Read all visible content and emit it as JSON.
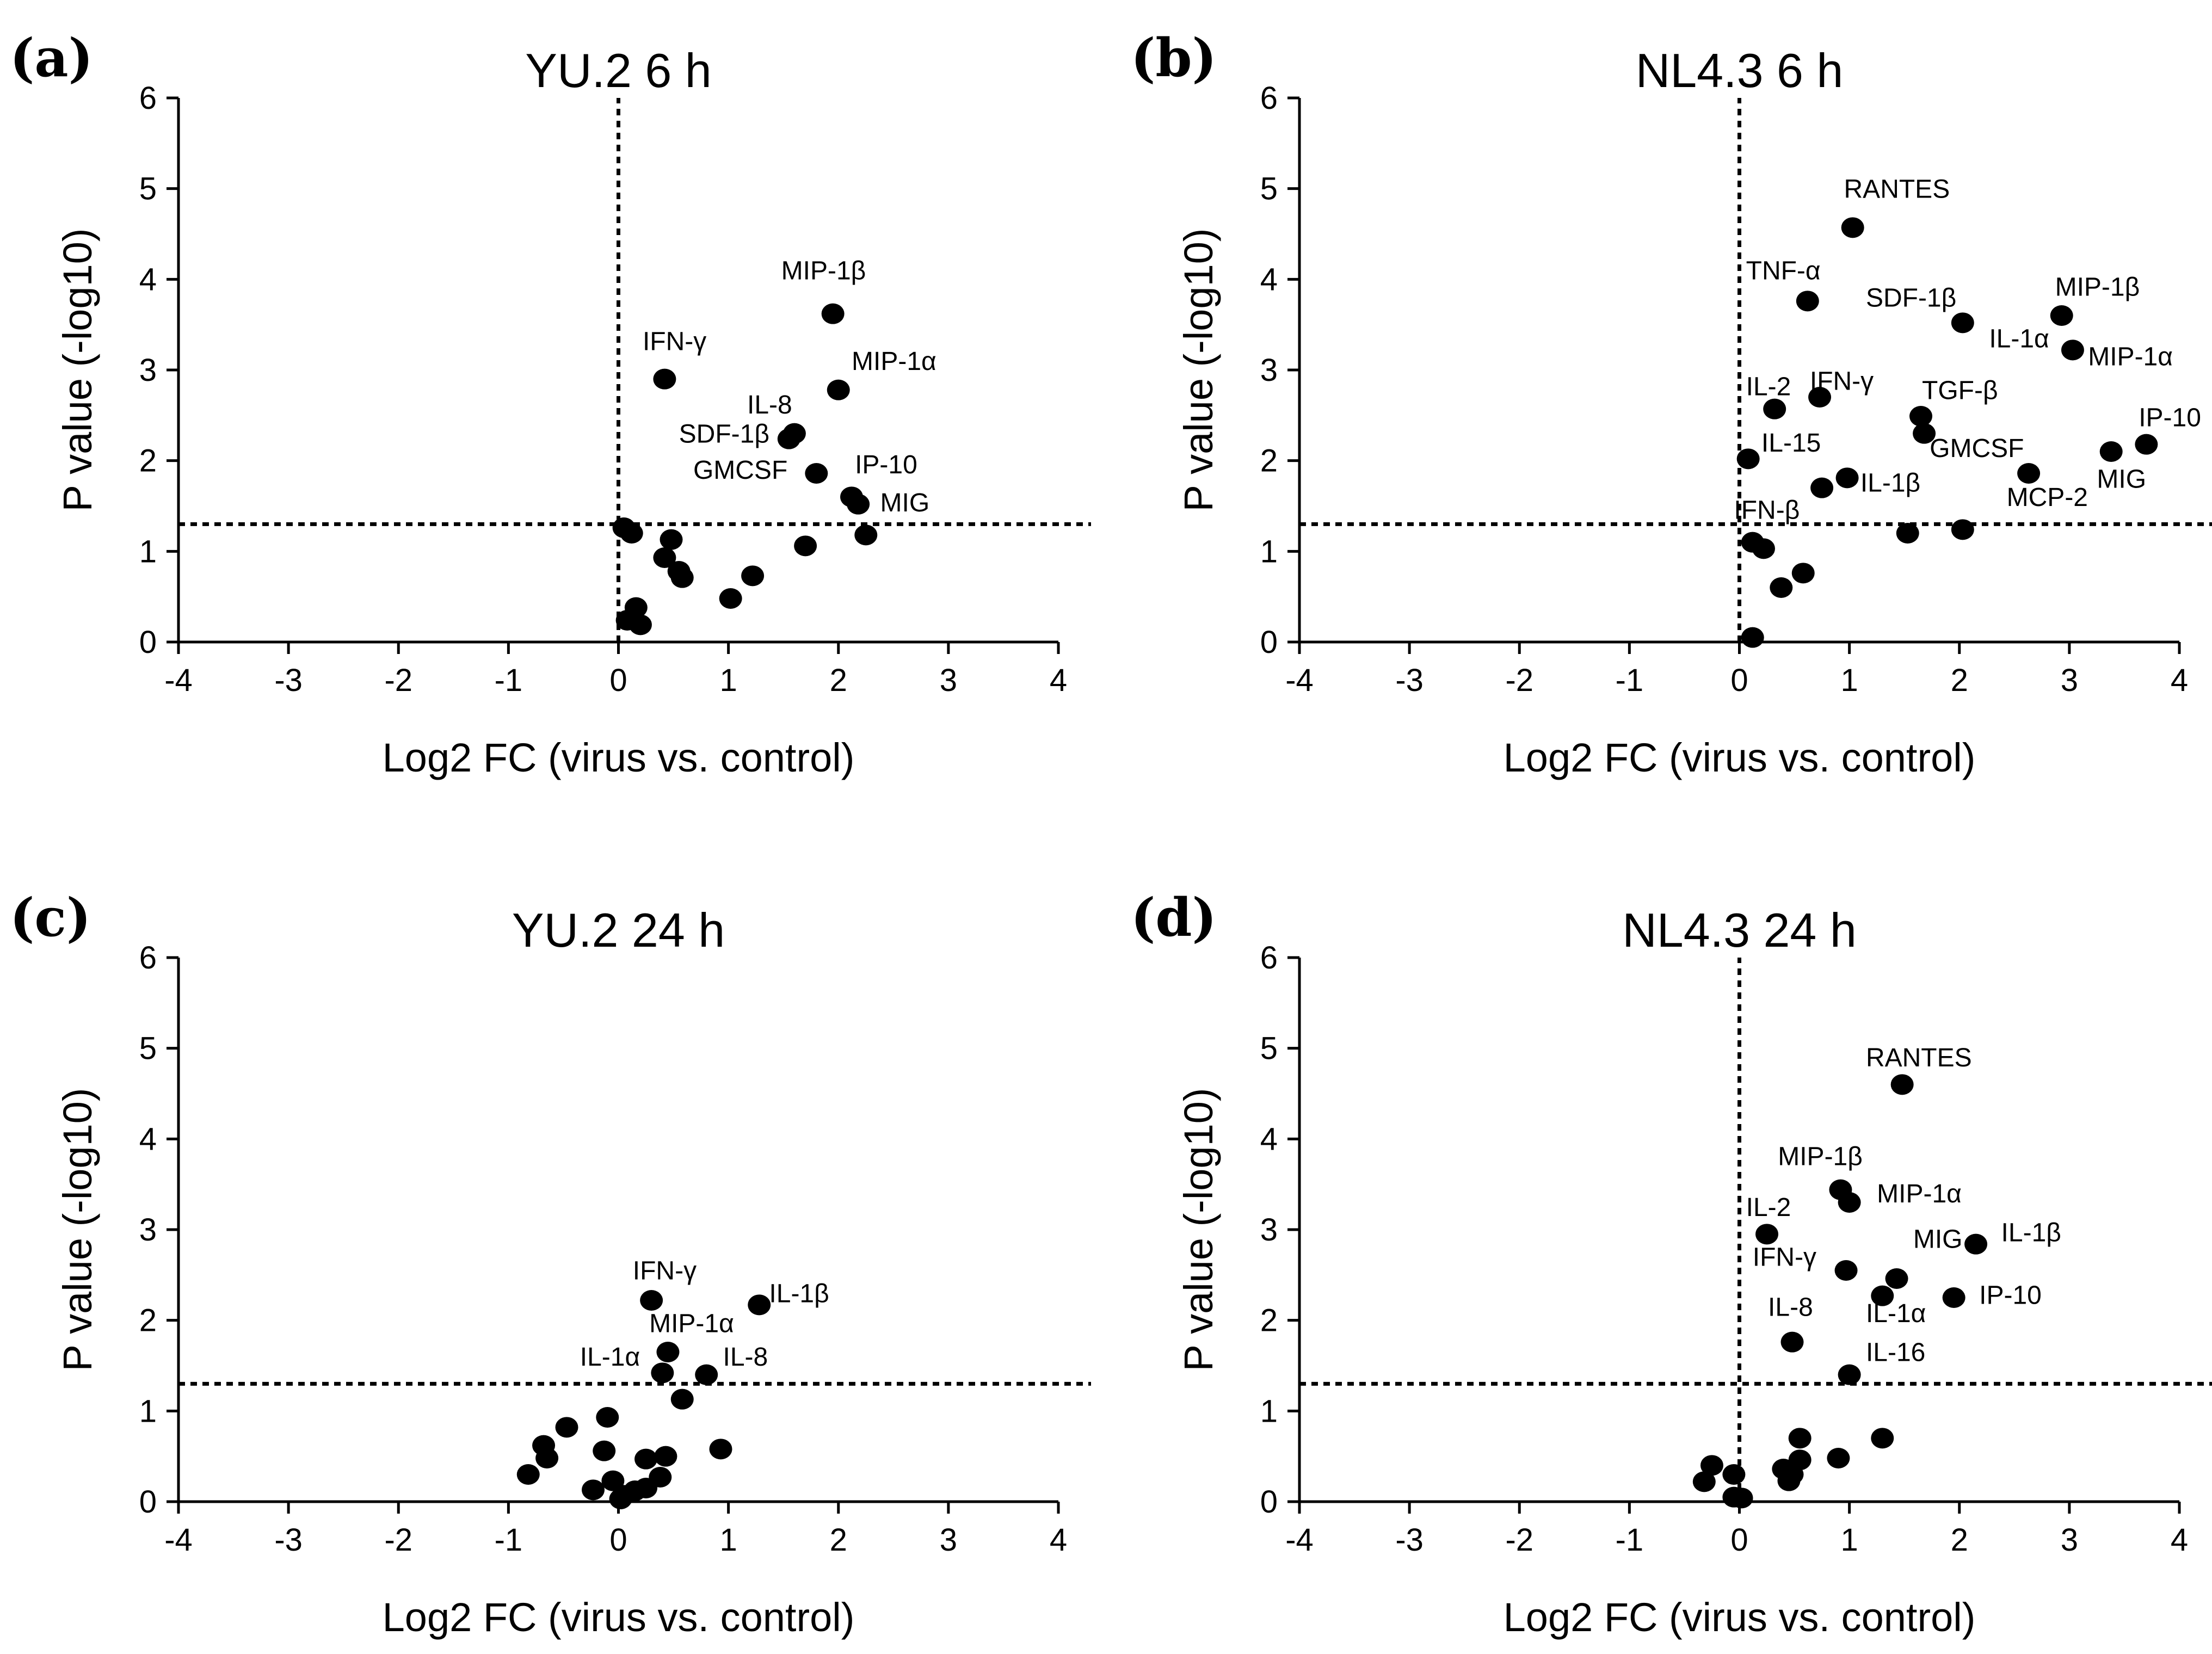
{
  "chart_data": [
    {
      "type": "scatter",
      "panel_label": "(a)",
      "title": "YU.2 6 h",
      "xlabel": "Log2 FC (virus vs. control)",
      "ylabel": "P value (-log10)",
      "xlim": [
        -4,
        4
      ],
      "ylim": [
        0,
        6
      ],
      "xticks": [
        "-4",
        "-3",
        "-2",
        "-1",
        "0",
        "1",
        "2",
        "3",
        "4"
      ],
      "yticks": [
        "0",
        "1",
        "2",
        "3",
        "4",
        "5",
        "6"
      ],
      "reference_lines": {
        "x": 0,
        "y": 1.3
      },
      "points": [
        {
          "x": 1.95,
          "y": 3.62
        },
        {
          "x": 2.0,
          "y": 2.78
        },
        {
          "x": 0.42,
          "y": 2.9
        },
        {
          "x": 1.6,
          "y": 2.3
        },
        {
          "x": 1.55,
          "y": 2.24
        },
        {
          "x": 1.8,
          "y": 1.86
        },
        {
          "x": 2.12,
          "y": 1.6
        },
        {
          "x": 2.18,
          "y": 1.52
        },
        {
          "x": 2.25,
          "y": 1.18
        },
        {
          "x": 0.05,
          "y": 1.26
        },
        {
          "x": 0.12,
          "y": 1.2
        },
        {
          "x": 0.48,
          "y": 1.13
        },
        {
          "x": 0.42,
          "y": 0.93
        },
        {
          "x": 0.55,
          "y": 0.78
        },
        {
          "x": 0.58,
          "y": 0.71
        },
        {
          "x": 1.7,
          "y": 1.06
        },
        {
          "x": 1.22,
          "y": 0.73
        },
        {
          "x": 1.02,
          "y": 0.48
        },
        {
          "x": 0.16,
          "y": 0.38
        },
        {
          "x": 0.08,
          "y": 0.24
        },
        {
          "x": 0.2,
          "y": 0.19
        }
      ],
      "labels": [
        {
          "text": "MIP-1β",
          "x": 1.48,
          "y": 4.0
        },
        {
          "text": "IFN-γ",
          "x": 0.22,
          "y": 3.22
        },
        {
          "text": "MIP-1α",
          "x": 2.12,
          "y": 3.0
        },
        {
          "text": "IL-8",
          "x": 1.17,
          "y": 2.52
        },
        {
          "text": "SDF-1β",
          "x": 0.55,
          "y": 2.2
        },
        {
          "text": "GMCSF",
          "x": 0.68,
          "y": 1.8
        },
        {
          "text": "IP-10",
          "x": 2.15,
          "y": 1.86
        },
        {
          "text": "MIG",
          "x": 2.38,
          "y": 1.44
        }
      ]
    },
    {
      "type": "scatter",
      "panel_label": "(b)",
      "title": "NL4.3 6 h",
      "xlabel": "Log2 FC (virus vs. control)",
      "ylabel": "P value (-log10)",
      "xlim": [
        -4,
        4
      ],
      "ylim": [
        0,
        6
      ],
      "xticks": [
        "-4",
        "-3",
        "-2",
        "-1",
        "0",
        "1",
        "2",
        "3",
        "4"
      ],
      "yticks": [
        "0",
        "1",
        "2",
        "3",
        "4",
        "5",
        "6"
      ],
      "reference_lines": {
        "x": 0,
        "y": 1.3
      },
      "points": [
        {
          "x": 1.03,
          "y": 4.57
        },
        {
          "x": 0.62,
          "y": 3.76
        },
        {
          "x": 2.03,
          "y": 3.52
        },
        {
          "x": 2.93,
          "y": 3.6
        },
        {
          "x": 3.03,
          "y": 3.22
        },
        {
          "x": 0.73,
          "y": 2.7
        },
        {
          "x": 0.32,
          "y": 2.57
        },
        {
          "x": 1.65,
          "y": 2.49
        },
        {
          "x": 1.68,
          "y": 2.3
        },
        {
          "x": 0.08,
          "y": 2.02
        },
        {
          "x": 3.38,
          "y": 2.1
        },
        {
          "x": 3.7,
          "y": 2.18
        },
        {
          "x": 2.63,
          "y": 1.86
        },
        {
          "x": 0.98,
          "y": 1.81
        },
        {
          "x": 0.75,
          "y": 1.7
        },
        {
          "x": 1.53,
          "y": 1.2
        },
        {
          "x": 2.03,
          "y": 1.24
        },
        {
          "x": 0.12,
          "y": 1.1
        },
        {
          "x": 0.22,
          "y": 1.03
        },
        {
          "x": 0.58,
          "y": 0.76
        },
        {
          "x": 0.38,
          "y": 0.6
        },
        {
          "x": 0.12,
          "y": 0.05
        }
      ],
      "labels": [
        {
          "text": "RANTES",
          "x": 0.95,
          "y": 4.9
        },
        {
          "text": "TNF-α",
          "x": 0.06,
          "y": 4.0
        },
        {
          "text": "SDF-1β",
          "x": 1.15,
          "y": 3.7
        },
        {
          "text": "MIP-1β",
          "x": 2.87,
          "y": 3.82
        },
        {
          "text": "IL-1α",
          "x": 2.27,
          "y": 3.25
        },
        {
          "text": "MIP-1α",
          "x": 3.17,
          "y": 3.05
        },
        {
          "text": "IL-2",
          "x": 0.06,
          "y": 2.72
        },
        {
          "text": "IFN-γ",
          "x": 0.64,
          "y": 2.78
        },
        {
          "text": "TGF-β",
          "x": 1.66,
          "y": 2.68
        },
        {
          "text": "IL-15",
          "x": 0.2,
          "y": 2.1
        },
        {
          "text": "GMCSF",
          "x": 1.73,
          "y": 2.04
        },
        {
          "text": "IP-10",
          "x": 3.63,
          "y": 2.38
        },
        {
          "text": "IL-1β",
          "x": 1.1,
          "y": 1.66
        },
        {
          "text": "MCP-2",
          "x": 2.43,
          "y": 1.5
        },
        {
          "text": "MIG",
          "x": 3.25,
          "y": 1.7
        },
        {
          "text": "IFN-β",
          "x": -0.05,
          "y": 1.36
        }
      ]
    },
    {
      "type": "scatter",
      "panel_label": "(c)",
      "title": "YU.2 24 h",
      "xlabel": "Log2 FC (virus vs. control)",
      "ylabel": "P value (-log10)",
      "xlim": [
        -4,
        4
      ],
      "ylim": [
        0,
        6
      ],
      "xticks": [
        "-4",
        "-3",
        "-2",
        "-1",
        "0",
        "1",
        "2",
        "3",
        "4"
      ],
      "yticks": [
        "0",
        "1",
        "2",
        "3",
        "4",
        "5",
        "6"
      ],
      "reference_lines": {
        "y": 1.3
      },
      "points": [
        {
          "x": 0.3,
          "y": 2.22
        },
        {
          "x": 1.28,
          "y": 2.17
        },
        {
          "x": 0.45,
          "y": 1.65
        },
        {
          "x": 0.4,
          "y": 1.42
        },
        {
          "x": 0.8,
          "y": 1.4
        },
        {
          "x": 0.58,
          "y": 1.13
        },
        {
          "x": -0.1,
          "y": 0.93
        },
        {
          "x": -0.47,
          "y": 0.82
        },
        {
          "x": -0.68,
          "y": 0.62
        },
        {
          "x": -0.65,
          "y": 0.48
        },
        {
          "x": -0.13,
          "y": 0.56
        },
        {
          "x": 0.93,
          "y": 0.58
        },
        {
          "x": -0.82,
          "y": 0.3
        },
        {
          "x": 0.43,
          "y": 0.5
        },
        {
          "x": 0.25,
          "y": 0.47
        },
        {
          "x": 0.38,
          "y": 0.27
        },
        {
          "x": -0.05,
          "y": 0.23
        },
        {
          "x": -0.23,
          "y": 0.13
        },
        {
          "x": 0.25,
          "y": 0.15
        },
        {
          "x": 0.15,
          "y": 0.12
        },
        {
          "x": 0.05,
          "y": 0.07
        },
        {
          "x": 0.02,
          "y": 0.03
        }
      ],
      "labels": [
        {
          "text": "IFN-γ",
          "x": 0.13,
          "y": 2.45
        },
        {
          "text": "IL-1β",
          "x": 1.37,
          "y": 2.2
        },
        {
          "text": "MIP-1α",
          "x": 0.28,
          "y": 1.87
        },
        {
          "text": "IL-1α",
          "x": -0.35,
          "y": 1.5
        },
        {
          "text": "IL-8",
          "x": 0.95,
          "y": 1.5
        }
      ]
    },
    {
      "type": "scatter",
      "panel_label": "(d)",
      "title": "NL4.3 24 h",
      "xlabel": "Log2 FC (virus vs. control)",
      "ylabel": "P value (-log10)",
      "xlim": [
        -4,
        4
      ],
      "ylim": [
        0,
        6
      ],
      "xticks": [
        "-4",
        "-3",
        "-2",
        "-1",
        "0",
        "1",
        "2",
        "3",
        "4"
      ],
      "yticks": [
        "0",
        "1",
        "2",
        "3",
        "4",
        "5",
        "6"
      ],
      "reference_lines": {
        "x": 0,
        "y": 1.3
      },
      "points": [
        {
          "x": 1.48,
          "y": 4.6
        },
        {
          "x": 0.92,
          "y": 3.44
        },
        {
          "x": 1.0,
          "y": 3.3
        },
        {
          "x": 0.25,
          "y": 2.95
        },
        {
          "x": 2.15,
          "y": 2.84
        },
        {
          "x": 0.97,
          "y": 2.55
        },
        {
          "x": 1.43,
          "y": 2.46
        },
        {
          "x": 1.3,
          "y": 2.27
        },
        {
          "x": 1.95,
          "y": 2.25
        },
        {
          "x": 0.48,
          "y": 1.76
        },
        {
          "x": 1.0,
          "y": 1.4
        },
        {
          "x": 1.3,
          "y": 0.7
        },
        {
          "x": 0.55,
          "y": 0.7
        },
        {
          "x": 0.9,
          "y": 0.48
        },
        {
          "x": 0.55,
          "y": 0.46
        },
        {
          "x": 0.4,
          "y": 0.36
        },
        {
          "x": 0.48,
          "y": 0.3
        },
        {
          "x": 0.45,
          "y": 0.23
        },
        {
          "x": -0.25,
          "y": 0.4
        },
        {
          "x": -0.05,
          "y": 0.3
        },
        {
          "x": -0.32,
          "y": 0.22
        },
        {
          "x": -0.05,
          "y": 0.05
        },
        {
          "x": 0.02,
          "y": 0.04
        }
      ],
      "labels": [
        {
          "text": "RANTES",
          "x": 1.15,
          "y": 4.8
        },
        {
          "text": "MIP-1β",
          "x": 0.35,
          "y": 3.71
        },
        {
          "text": "MIP-1α",
          "x": 1.25,
          "y": 3.3
        },
        {
          "text": "IL-2",
          "x": 0.06,
          "y": 3.15
        },
        {
          "text": "IL-1β",
          "x": 2.38,
          "y": 2.87
        },
        {
          "text": "IFN-γ",
          "x": 0.12,
          "y": 2.6
        },
        {
          "text": "MIG",
          "x": 1.58,
          "y": 2.8
        },
        {
          "text": "IP-10",
          "x": 2.18,
          "y": 2.18
        },
        {
          "text": "IL-8",
          "x": 0.26,
          "y": 2.05
        },
        {
          "text": "IL-1α",
          "x": 1.15,
          "y": 1.98
        },
        {
          "text": "IL-16",
          "x": 1.15,
          "y": 1.55
        }
      ]
    }
  ]
}
